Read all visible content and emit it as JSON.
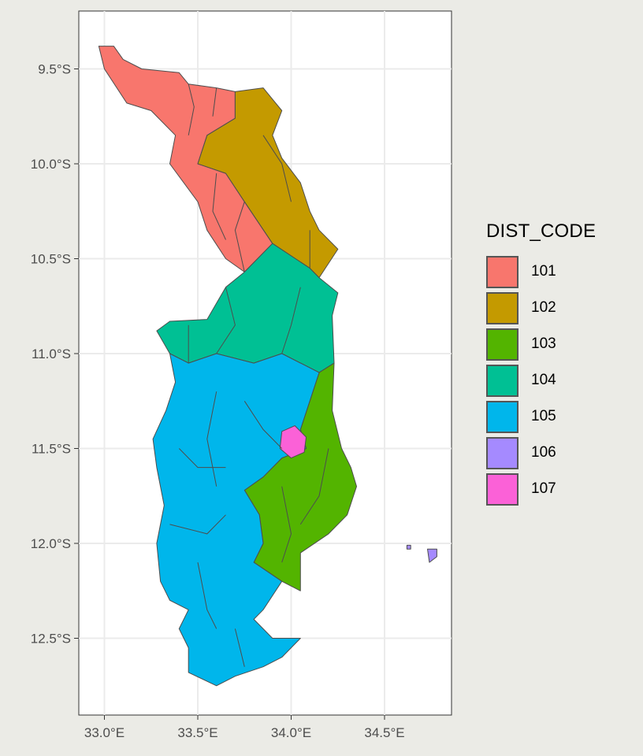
{
  "chart_data": {
    "type": "choropleth",
    "x_ticks": [
      "33.0°E",
      "33.5°E",
      "34.0°E",
      "34.5°E"
    ],
    "x_tick_values": [
      33.0,
      33.5,
      34.0,
      34.5
    ],
    "y_ticks": [
      "9.5°S",
      "10.0°S",
      "10.5°S",
      "11.0°S",
      "11.5°S",
      "12.0°S",
      "12.5°S"
    ],
    "y_tick_values": [
      -9.5,
      -10.0,
      -10.5,
      -11.0,
      -11.5,
      -12.0,
      -12.5
    ],
    "xlim": [
      32.87,
      34.85
    ],
    "ylim": [
      -12.88,
      -9.12
    ],
    "grid": true,
    "legend": {
      "title": "DIST_CODE",
      "position": "right",
      "items": [
        {
          "label": "101",
          "color": "#F8766D"
        },
        {
          "label": "102",
          "color": "#C49A00"
        },
        {
          "label": "103",
          "color": "#53B400"
        },
        {
          "label": "104",
          "color": "#00C094"
        },
        {
          "label": "105",
          "color": "#00B6EB"
        },
        {
          "label": "106",
          "color": "#A58AFF"
        },
        {
          "label": "107",
          "color": "#FB61D7"
        }
      ]
    },
    "regions": [
      {
        "code": "101",
        "color": "#F8766D",
        "boundary": [
          [
            32.97,
            -9.38
          ],
          [
            33.05,
            -9.38
          ],
          [
            33.1,
            -9.45
          ],
          [
            33.2,
            -9.5
          ],
          [
            33.4,
            -9.52
          ],
          [
            33.45,
            -9.58
          ],
          [
            33.6,
            -9.6
          ],
          [
            33.7,
            -9.62
          ],
          [
            33.7,
            -9.76
          ],
          [
            33.55,
            -9.85
          ],
          [
            33.5,
            -10.0
          ],
          [
            33.65,
            -10.05
          ],
          [
            33.75,
            -10.2
          ],
          [
            33.9,
            -10.42
          ],
          [
            33.75,
            -10.57
          ],
          [
            33.65,
            -10.5
          ],
          [
            33.55,
            -10.35
          ],
          [
            33.5,
            -10.2
          ],
          [
            33.35,
            -10.0
          ],
          [
            33.38,
            -9.85
          ],
          [
            33.25,
            -9.72
          ],
          [
            33.12,
            -9.68
          ],
          [
            33.0,
            -9.5
          ]
        ]
      },
      {
        "code": "102",
        "color": "#C49A00",
        "boundary": [
          [
            33.7,
            -9.62
          ],
          [
            33.85,
            -9.6
          ],
          [
            33.95,
            -9.72
          ],
          [
            33.9,
            -9.85
          ],
          [
            33.95,
            -9.97
          ],
          [
            34.05,
            -10.1
          ],
          [
            34.1,
            -10.25
          ],
          [
            34.15,
            -10.35
          ],
          [
            34.25,
            -10.45
          ],
          [
            34.15,
            -10.6
          ],
          [
            34.1,
            -10.55
          ],
          [
            33.9,
            -10.42
          ],
          [
            33.75,
            -10.2
          ],
          [
            33.65,
            -10.05
          ],
          [
            33.5,
            -10.0
          ],
          [
            33.55,
            -9.85
          ],
          [
            33.7,
            -9.76
          ]
        ]
      },
      {
        "code": "104",
        "color": "#00C094",
        "boundary": [
          [
            33.9,
            -10.42
          ],
          [
            34.1,
            -10.55
          ],
          [
            34.15,
            -10.6
          ],
          [
            34.25,
            -10.68
          ],
          [
            34.22,
            -10.8
          ],
          [
            34.23,
            -11.05
          ],
          [
            34.15,
            -11.1
          ],
          [
            33.95,
            -11.0
          ],
          [
            33.8,
            -11.05
          ],
          [
            33.6,
            -11.0
          ],
          [
            33.45,
            -11.05
          ],
          [
            33.35,
            -11.0
          ],
          [
            33.28,
            -10.88
          ],
          [
            33.35,
            -10.83
          ],
          [
            33.55,
            -10.82
          ],
          [
            33.65,
            -10.65
          ],
          [
            33.75,
            -10.57
          ]
        ]
      },
      {
        "code": "103",
        "color": "#53B400",
        "boundary": [
          [
            34.15,
            -11.1
          ],
          [
            34.23,
            -11.05
          ],
          [
            34.22,
            -11.3
          ],
          [
            34.27,
            -11.5
          ],
          [
            34.32,
            -11.6
          ],
          [
            34.35,
            -11.7
          ],
          [
            34.3,
            -11.85
          ],
          [
            34.2,
            -11.95
          ],
          [
            34.05,
            -12.05
          ],
          [
            34.05,
            -12.25
          ],
          [
            33.95,
            -12.2
          ],
          [
            33.8,
            -12.1
          ],
          [
            33.85,
            -12.0
          ],
          [
            33.83,
            -11.85
          ],
          [
            33.75,
            -11.72
          ],
          [
            33.85,
            -11.65
          ],
          [
            33.95,
            -11.55
          ],
          [
            34.08,
            -11.5
          ],
          [
            34.05,
            -11.4
          ]
        ]
      },
      {
        "code": "105",
        "color": "#00B6EB",
        "boundary": [
          [
            33.35,
            -11.0
          ],
          [
            33.45,
            -11.05
          ],
          [
            33.6,
            -11.0
          ],
          [
            33.8,
            -11.05
          ],
          [
            33.95,
            -11.0
          ],
          [
            34.15,
            -11.1
          ],
          [
            34.05,
            -11.4
          ],
          [
            34.08,
            -11.5
          ],
          [
            33.95,
            -11.55
          ],
          [
            33.85,
            -11.65
          ],
          [
            33.75,
            -11.72
          ],
          [
            33.83,
            -11.85
          ],
          [
            33.85,
            -12.0
          ],
          [
            33.8,
            -12.1
          ],
          [
            33.95,
            -12.2
          ],
          [
            33.85,
            -12.35
          ],
          [
            33.8,
            -12.4
          ],
          [
            33.9,
            -12.5
          ],
          [
            34.05,
            -12.5
          ],
          [
            33.95,
            -12.6
          ],
          [
            33.85,
            -12.65
          ],
          [
            33.7,
            -12.7
          ],
          [
            33.6,
            -12.75
          ],
          [
            33.45,
            -12.68
          ],
          [
            33.45,
            -12.55
          ],
          [
            33.4,
            -12.45
          ],
          [
            33.45,
            -12.35
          ],
          [
            33.35,
            -12.3
          ],
          [
            33.3,
            -12.2
          ],
          [
            33.28,
            -12.0
          ],
          [
            33.32,
            -11.8
          ],
          [
            33.28,
            -11.6
          ],
          [
            33.26,
            -11.45
          ],
          [
            33.33,
            -11.3
          ],
          [
            33.38,
            -11.15
          ]
        ]
      },
      {
        "code": "107",
        "color": "#FB61D7",
        "boundary": [
          [
            33.95,
            -11.41
          ],
          [
            34.02,
            -11.38
          ],
          [
            34.08,
            -11.44
          ],
          [
            34.07,
            -11.52
          ],
          [
            34.0,
            -11.55
          ],
          [
            33.94,
            -11.5
          ]
        ]
      },
      {
        "code": "106",
        "color": "#A58AFF",
        "boundary": [
          [
            34.73,
            -12.03
          ],
          [
            34.78,
            -12.03
          ],
          [
            34.78,
            -12.07
          ],
          [
            34.74,
            -12.1
          ]
        ]
      },
      {
        "code": "106",
        "color": "#A58AFF",
        "boundary": [
          [
            34.62,
            -12.01
          ],
          [
            34.64,
            -12.01
          ],
          [
            34.64,
            -12.03
          ],
          [
            34.62,
            -12.03
          ]
        ]
      }
    ],
    "internal_lines": [
      [
        [
          33.45,
          -9.58
        ],
        [
          33.48,
          -9.7
        ],
        [
          33.45,
          -9.85
        ]
      ],
      [
        [
          33.6,
          -9.6
        ],
        [
          33.58,
          -9.75
        ]
      ],
      [
        [
          33.6,
          -10.05
        ],
        [
          33.58,
          -10.25
        ],
        [
          33.65,
          -10.4
        ]
      ],
      [
        [
          33.75,
          -10.2
        ],
        [
          33.7,
          -10.35
        ],
        [
          33.75,
          -10.57
        ]
      ],
      [
        [
          33.85,
          -9.85
        ],
        [
          33.95,
          -10.0
        ],
        [
          34.0,
          -10.2
        ]
      ],
      [
        [
          34.1,
          -10.35
        ],
        [
          34.1,
          -10.55
        ]
      ],
      [
        [
          33.65,
          -10.65
        ],
        [
          33.7,
          -10.85
        ],
        [
          33.6,
          -11.0
        ]
      ],
      [
        [
          34.05,
          -10.65
        ],
        [
          34.0,
          -10.85
        ],
        [
          33.95,
          -11.0
        ]
      ],
      [
        [
          33.45,
          -10.85
        ],
        [
          33.45,
          -11.05
        ]
      ],
      [
        [
          33.6,
          -11.2
        ],
        [
          33.55,
          -11.45
        ],
        [
          33.6,
          -11.7
        ]
      ],
      [
        [
          33.75,
          -11.25
        ],
        [
          33.85,
          -11.4
        ],
        [
          33.95,
          -11.5
        ]
      ],
      [
        [
          33.4,
          -11.5
        ],
        [
          33.5,
          -11.6
        ],
        [
          33.65,
          -11.6
        ]
      ],
      [
        [
          33.35,
          -11.9
        ],
        [
          33.55,
          -11.95
        ],
        [
          33.65,
          -11.85
        ]
      ],
      [
        [
          33.5,
          -12.1
        ],
        [
          33.55,
          -12.35
        ],
        [
          33.6,
          -12.45
        ]
      ],
      [
        [
          33.7,
          -12.45
        ],
        [
          33.75,
          -12.65
        ]
      ],
      [
        [
          34.2,
          -11.5
        ],
        [
          34.15,
          -11.75
        ],
        [
          34.05,
          -11.9
        ]
      ],
      [
        [
          33.95,
          -11.7
        ],
        [
          34.0,
          -11.95
        ],
        [
          33.95,
          -12.1
        ]
      ]
    ]
  }
}
